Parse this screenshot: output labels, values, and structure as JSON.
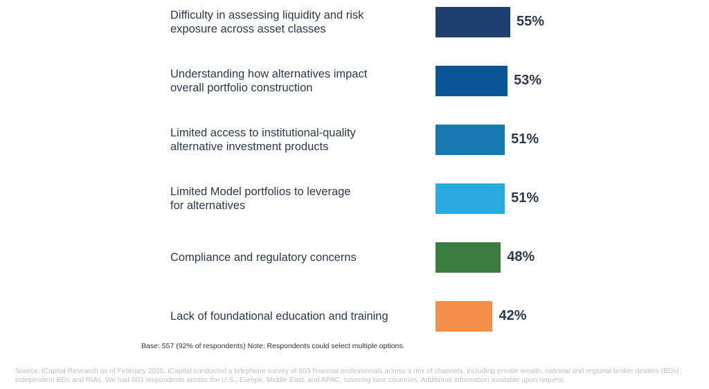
{
  "chart_data": {
    "type": "bar",
    "orientation": "horizontal",
    "categories": [
      "Difficulty in assessing liquidity and risk\nexposure across asset classes",
      "Understanding how alternatives impact\noverall portfolio construction",
      "Limited access to institutional-quality\nalternative investment products",
      "Limited Model portfolios to leverage\nfor alternatives",
      "Compliance and regulatory concerns",
      "Lack of foundational education and training"
    ],
    "values": [
      55,
      53,
      51,
      51,
      48,
      42
    ],
    "value_labels": [
      "55%",
      "53%",
      "51%",
      "51%",
      "48%",
      "42%"
    ],
    "colors": [
      "#1c3f6e",
      "#0a5594",
      "#1679b0",
      "#2aa9e0",
      "#3b7d40",
      "#f58d4b"
    ],
    "title": "",
    "xlabel": "",
    "ylabel": "",
    "grid": false,
    "legend": "none"
  },
  "notes": {
    "base": "Base: 557 (92% of respondents) Note: Respondents could select multiple options.",
    "source": "Source: iCapital Research as of February 2025. iCapital conducted a telephone survey of 603 financial professionals across a mix of channels, including private wealth, national and regional broker dealers (BDs), independent BDs and RIAs.  We had 603 respondents across the U.S., Europe, Middle East, and APAC, covering nine countries. Additional information available upon request."
  }
}
